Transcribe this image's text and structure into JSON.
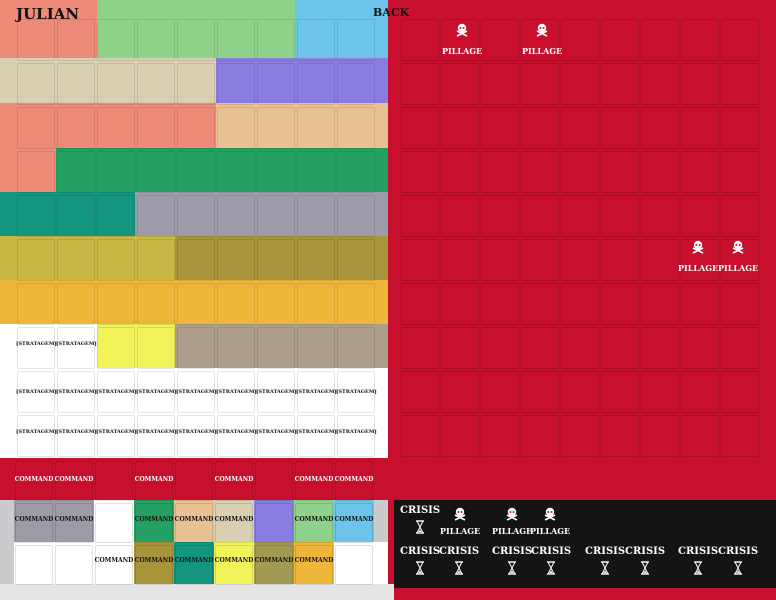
{
  "sheet": {
    "front_title": "JULIAN",
    "back_title": "BACK",
    "labels": {
      "stratagem": "[STRATAGEM]",
      "command": "COMMAND",
      "pillage": "PILLAGE",
      "crisis": "CRISIS"
    },
    "icons": {
      "pillage": "skull-crossbones-icon",
      "crisis": "hourglass-icon"
    },
    "colors": {
      "back_red": "#c8102e",
      "black": "#141414",
      "white": "#ffffff",
      "salmon": "#ed8a78",
      "light_green": "#8fd28a",
      "sky_blue": "#6cc4ea",
      "tan": "#d8d0b0",
      "purple": "#8a7de0",
      "peach": "#e8c293",
      "green": "#24a062",
      "teal": "#13957f",
      "gray": "#9c9ca8",
      "olive_light": "#c8b744",
      "olive_dark": "#a8943a",
      "gold": "#efb73a",
      "yellow": "#f2f25a",
      "taupe": "#ad9c8a",
      "olive_gray": "#a09a52"
    }
  }
}
